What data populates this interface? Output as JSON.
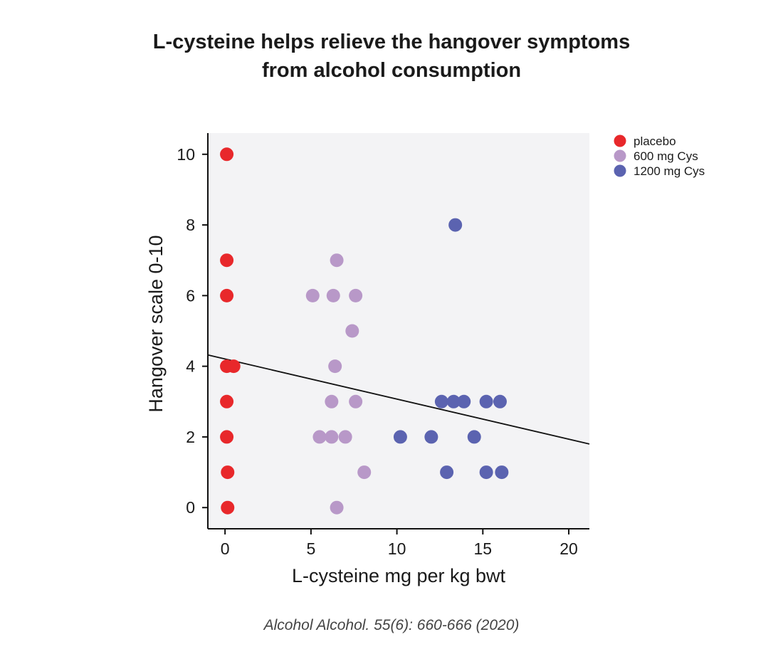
{
  "chart_data": {
    "type": "scatter",
    "title_lines": [
      "L-cysteine helps relieve the hangover symptoms",
      "from alcohol consumption"
    ],
    "xlabel": "L-cysteine mg per kg bwt",
    "ylabel": "Hangover scale 0-10",
    "xlim": [
      -1,
      21.2
    ],
    "ylim": [
      -0.6,
      10.6
    ],
    "xticks": [
      0,
      5,
      10,
      15,
      20
    ],
    "yticks": [
      0,
      2,
      4,
      6,
      8,
      10
    ],
    "grid": false,
    "legend_position": "top-right",
    "series": [
      {
        "name": "placebo",
        "color": "#e8282b",
        "points": [
          [
            0.1,
            10
          ],
          [
            0.1,
            7
          ],
          [
            0.1,
            6
          ],
          [
            0.1,
            4
          ],
          [
            0.5,
            4
          ],
          [
            0.1,
            3
          ],
          [
            0.1,
            2
          ],
          [
            0.15,
            1
          ],
          [
            0.15,
            0
          ]
        ]
      },
      {
        "name": "600 mg Cys",
        "color": "#b898c8",
        "points": [
          [
            6.5,
            7
          ],
          [
            5.1,
            6
          ],
          [
            6.3,
            6
          ],
          [
            7.6,
            6
          ],
          [
            7.4,
            5
          ],
          [
            6.4,
            4
          ],
          [
            6.2,
            3
          ],
          [
            7.6,
            3
          ],
          [
            5.5,
            2
          ],
          [
            6.2,
            2
          ],
          [
            7.0,
            2
          ],
          [
            8.1,
            1
          ],
          [
            6.5,
            0
          ]
        ]
      },
      {
        "name": "1200 mg Cys",
        "color": "#5b63b0",
        "points": [
          [
            13.4,
            8
          ],
          [
            12.6,
            3
          ],
          [
            13.3,
            3
          ],
          [
            13.9,
            3
          ],
          [
            15.2,
            3
          ],
          [
            16.0,
            3
          ],
          [
            10.2,
            2
          ],
          [
            12.0,
            2
          ],
          [
            14.5,
            2
          ],
          [
            12.9,
            1
          ],
          [
            15.2,
            1
          ],
          [
            16.1,
            1
          ]
        ]
      }
    ],
    "trendline": {
      "x": [
        -1,
        21.2
      ],
      "y": [
        4.32,
        1.8
      ],
      "color": "#111111"
    },
    "plot_background": "#f3f3f5",
    "citation": "Alcohol Alcohol. 55(6): 660-666 (2020)"
  }
}
